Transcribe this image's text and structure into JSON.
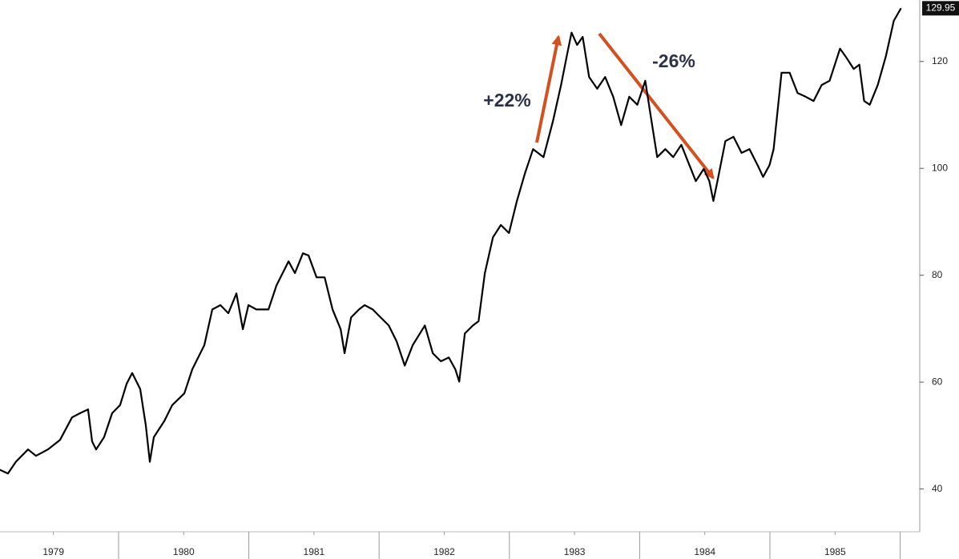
{
  "chart_data": {
    "type": "line",
    "annotations": [
      "+22%",
      "-26%"
    ],
    "x": [
      1979.089,
      1979.151,
      1979.212,
      1979.305,
      1979.366,
      1979.458,
      1979.551,
      1979.643,
      1979.705,
      1979.766,
      1979.797,
      1979.828,
      1979.889,
      1979.951,
      1980.012,
      1980.062,
      1980.105,
      1980.166,
      1980.209,
      1980.24,
      1980.271,
      1980.351,
      1980.412,
      1980.505,
      1980.566,
      1980.658,
      1980.72,
      1980.782,
      1980.843,
      1980.905,
      1980.954,
      1980.997,
      1981.058,
      1981.151,
      1981.212,
      1981.305,
      1981.354,
      1981.415,
      1981.458,
      1981.52,
      1981.582,
      1981.643,
      1981.705,
      1981.735,
      1981.785,
      1981.846,
      1981.889,
      1981.951,
      1982.012,
      1982.074,
      1982.135,
      1982.197,
      1982.258,
      1982.351,
      1982.412,
      1982.474,
      1982.535,
      1982.585,
      1982.615,
      1982.658,
      1982.72,
      1982.763,
      1982.812,
      1982.874,
      1982.935,
      1982.997,
      1983.058,
      1983.12,
      1983.182,
      1983.262,
      1983.335,
      1983.397,
      1983.44,
      1983.477,
      1983.52,
      1983.563,
      1983.612,
      1983.674,
      1983.735,
      1983.797,
      1983.858,
      1983.92,
      1983.982,
      1984.043,
      1984.086,
      1984.135,
      1984.197,
      1984.258,
      1984.32,
      1984.382,
      1984.431,
      1984.492,
      1984.535,
      1984.566,
      1984.597,
      1984.658,
      1984.72,
      1984.782,
      1984.843,
      1984.905,
      1984.948,
      1984.997,
      1985.028,
      1985.089,
      1985.151,
      1985.212,
      1985.274,
      1985.335,
      1985.397,
      1985.458,
      1985.538,
      1985.582,
      1985.643,
      1985.686,
      1985.723,
      1985.766,
      1985.828,
      1985.889,
      1985.951,
      1986.006
    ],
    "series": [
      {
        "color": "#000000",
        "values": [
          43.6,
          42.9,
          45.1,
          47.4,
          46.2,
          47.4,
          49.2,
          53.4,
          54.2,
          54.9,
          48.9,
          47.4,
          49.7,
          54.2,
          55.7,
          59.7,
          61.7,
          58.7,
          51.9,
          45.1,
          49.7,
          52.7,
          55.7,
          57.9,
          62.4,
          66.9,
          73.6,
          74.4,
          72.9,
          76.6,
          69.9,
          74.4,
          73.6,
          73.6,
          78.1,
          82.6,
          80.4,
          84.1,
          83.7,
          79.6,
          79.6,
          73.6,
          69.9,
          65.4,
          72.1,
          73.6,
          74.4,
          73.6,
          72.1,
          70.6,
          67.6,
          63.1,
          66.9,
          70.6,
          65.4,
          63.9,
          64.6,
          62.4,
          60.1,
          69.1,
          70.6,
          71.4,
          80.4,
          87.1,
          89.4,
          87.9,
          93.9,
          99.1,
          103.6,
          102.1,
          108.9,
          115.6,
          120.9,
          125.4,
          123.1,
          124.6,
          117.1,
          114.9,
          117.1,
          113.4,
          108.1,
          113.4,
          111.9,
          116.4,
          109.6,
          102.1,
          103.6,
          102.1,
          104.4,
          100.6,
          97.6,
          99.9,
          97.6,
          93.9,
          97.6,
          105.1,
          105.9,
          102.9,
          103.6,
          100.6,
          98.4,
          100.6,
          103.6,
          117.9,
          117.9,
          114.1,
          113.4,
          112.6,
          115.6,
          116.4,
          122.4,
          120.9,
          118.6,
          119.4,
          112.6,
          111.9,
          115.6,
          120.9,
          127.6,
          129.95
        ]
      }
    ],
    "xlim": [
      1979.09,
      1986.15
    ],
    "xticks": [
      {
        "value": 1979.5,
        "label": "1979"
      },
      {
        "value": 1980.5,
        "label": "1980"
      },
      {
        "value": 1981.5,
        "label": "1981"
      },
      {
        "value": 1982.5,
        "label": "1982"
      },
      {
        "value": 1983.5,
        "label": "1983"
      },
      {
        "value": 1984.5,
        "label": "1984"
      },
      {
        "value": 1985.5,
        "label": "1985"
      }
    ],
    "ylim": [
      32,
      131.5
    ],
    "yticks": [
      40,
      60,
      80,
      100,
      120
    ],
    "grid": false
  }
}
